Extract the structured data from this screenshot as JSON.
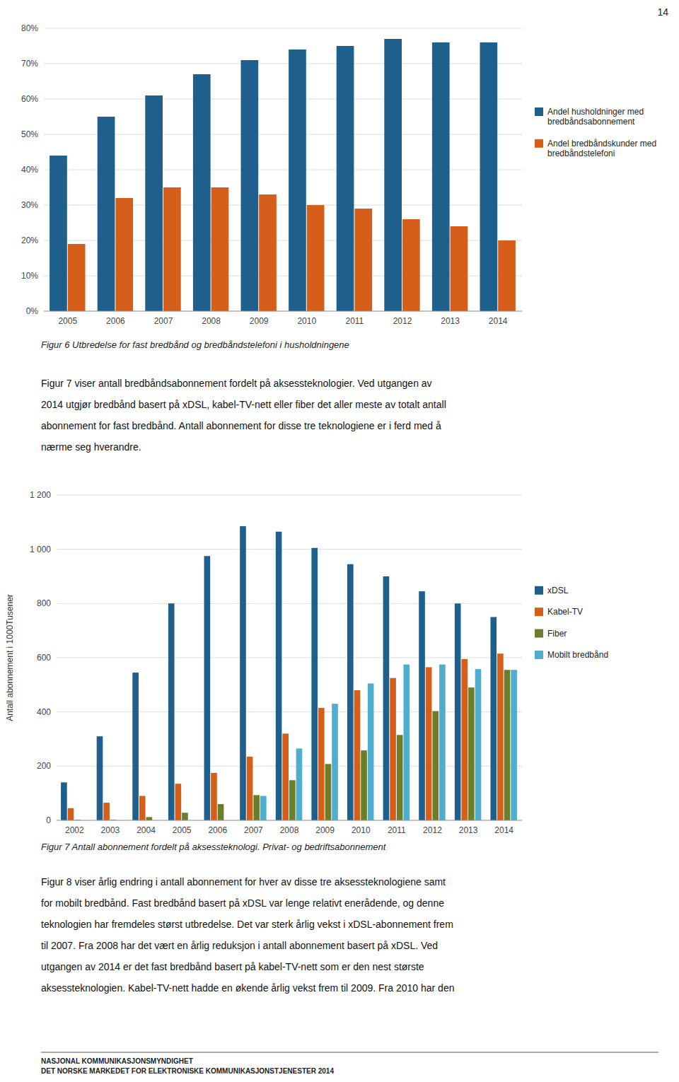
{
  "chart_data": [
    {
      "type": "bar",
      "title": "Figur 6 Utbredelse for fast bredbånd og bredbåndstelefoni i husholdningene",
      "categories": [
        "2005",
        "2006",
        "2007",
        "2008",
        "2009",
        "2010",
        "2011",
        "2012",
        "2013",
        "2014"
      ],
      "series": [
        {
          "name": "Andel husholdninger med\nbredbåndsabonnement",
          "color": "#1F5F8B",
          "values": [
            44,
            55,
            61,
            67,
            71,
            74,
            75,
            77,
            76,
            76
          ]
        },
        {
          "name": "Andel bredbåndskunder med\nbredbåndstelefoni",
          "color": "#D45E1A",
          "values": [
            19,
            32,
            35,
            35,
            33,
            30,
            29,
            26,
            24,
            20
          ]
        }
      ],
      "ylim": [
        0,
        80
      ],
      "yticks": [
        {
          "value": 0,
          "label": "0%"
        },
        {
          "value": 10,
          "label": "10%"
        },
        {
          "value": 20,
          "label": "20%"
        },
        {
          "value": 30,
          "label": "30%"
        },
        {
          "value": 40,
          "label": "40%"
        },
        {
          "value": 50,
          "label": "50%"
        },
        {
          "value": 60,
          "label": "60%"
        },
        {
          "value": 70,
          "label": "70%"
        },
        {
          "value": 80,
          "label": "80%"
        }
      ],
      "grid": true,
      "legend": "right"
    },
    {
      "type": "bar",
      "title": "Figur 7 Antall abonnement fordelt på aksessteknologi. Privat- og bedriftsabonnement",
      "y_label": "Antall abonnement i 1000Tusener",
      "categories": [
        "2002",
        "2003",
        "2004",
        "2005",
        "2006",
        "2007",
        "2008",
        "2009",
        "2010",
        "2011",
        "2012",
        "2013",
        "2014"
      ],
      "series": [
        {
          "name": "xDSL",
          "color": "#1F5F8B",
          "values": [
            140,
            310,
            545,
            800,
            975,
            1085,
            1065,
            1005,
            945,
            900,
            845,
            800,
            750
          ]
        },
        {
          "name": "Kabel-TV",
          "color": "#D45E1A",
          "values": [
            45,
            65,
            90,
            135,
            175,
            235,
            320,
            415,
            480,
            525,
            565,
            595,
            615
          ]
        },
        {
          "name": "Fiber",
          "color": "#6B7E2A",
          "values": [
            2,
            2,
            12,
            28,
            60,
            93,
            148,
            208,
            258,
            315,
            403,
            490,
            555
          ]
        },
        {
          "name": "Mobilt bredbånd",
          "color": "#4FAECD",
          "values": [
            0,
            0,
            0,
            0,
            0,
            90,
            265,
            430,
            505,
            575,
            575,
            558,
            555
          ]
        }
      ],
      "ylim": [
        0,
        1200
      ],
      "yticks": [
        0,
        200,
        400,
        600,
        800,
        {
          "value": 1000,
          "label": "1 000"
        },
        {
          "value": 1200,
          "label": "1 200"
        }
      ],
      "grid": true,
      "legend": "right"
    }
  ],
  "page": {
    "page_number": "14",
    "paragraphs": [
      [
        "Figur 7 viser antall bredbåndsabonnement fordelt på aksessteknologier. Ved utgangen av",
        "2014 utgjør bredbånd basert på xDSL, kabel-TV-nett eller fiber det aller meste av totalt antall",
        "abonnement for fast bredbånd. Antall abonnement for disse tre teknologiene er i ferd med å",
        "nærme seg hverandre."
      ],
      [
        "Figur 8 viser årlig endring i antall abonnement for hver av disse tre aksessteknologiene samt",
        "for mobilt bredbånd. Fast bredbånd basert på xDSL var lenge relativt enerådende, og denne",
        "teknologien har fremdeles størst utbredelse. Det var sterk årlig vekst i xDSL-abonnement frem",
        "til 2007. Fra 2008 har det vært en årlig reduksjon i antall abonnement basert på xDSL. Ved",
        "utgangen av 2014 er det fast bredbånd basert på kabel-TV-nett som er den nest største",
        "aksessteknologien. Kabel-TV-nett hadde en økende årlig vekst frem til 2009. Fra 2010 har den"
      ]
    ],
    "footer": [
      "NASJONAL KOMMUNIKASJONSMYNDIGHET",
      "DET NORSKE MARKEDET FOR ELEKTRONISKE KOMMUNIKASJONSTJENESTER 2014"
    ]
  }
}
